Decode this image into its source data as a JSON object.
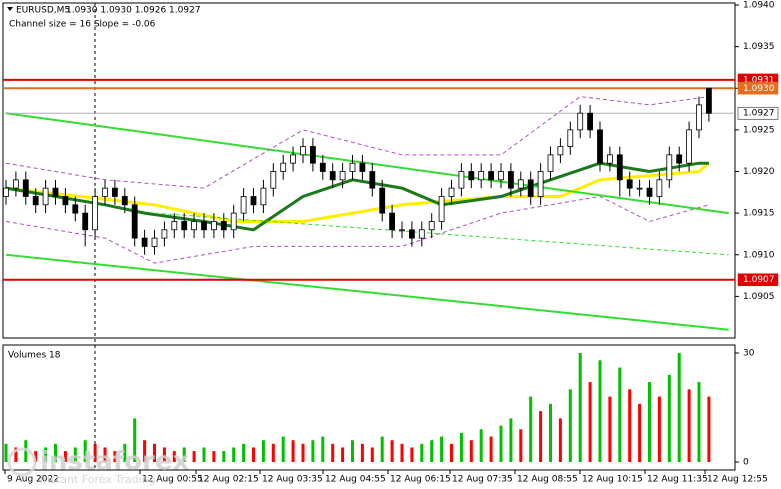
{
  "chart_data": {
    "type": "candlestick",
    "title": "EURUSD,M5",
    "ohlc_label": "1.0930 1.0930 1.0926 1.0927",
    "annotation": "Channel size = 16 Slope = -0.06",
    "open": [
      1.0917,
      1.0918,
      1.0919,
      1.0917,
      1.0916,
      1.0918,
      1.0917,
      1.0916,
      1.0915,
      1.0913,
      1.0917,
      1.0918,
      1.0917,
      1.0916,
      1.0912,
      1.0911,
      1.0912,
      1.0913,
      1.0914,
      1.0913,
      1.0914,
      1.0913,
      1.0914,
      1.0913,
      1.0915,
      1.0917,
      1.0916,
      1.0918,
      1.092,
      1.0921,
      1.0922,
      1.0923,
      1.0921,
      1.092,
      1.0919,
      1.092,
      1.0921,
      1.092,
      1.0918,
      1.0915,
      1.0913,
      1.0913,
      1.0912,
      1.0913,
      1.0914,
      1.0917,
      1.0918,
      1.092,
      1.0919,
      1.092,
      1.0919,
      1.092,
      1.0918,
      1.0919,
      1.0917,
      1.092,
      1.0922,
      1.0923,
      1.0925,
      1.0927,
      1.0925,
      1.0921,
      1.0922,
      1.0919,
      1.0918,
      1.0918,
      1.0917,
      1.0919,
      1.0922,
      1.0921,
      1.0925,
      1.093
    ],
    "high": [
      1.0919,
      1.092,
      1.092,
      1.0918,
      1.0919,
      1.0919,
      1.0918,
      1.0917,
      1.0916,
      1.0918,
      1.0919,
      1.0919,
      1.0918,
      1.0917,
      1.0913,
      1.0913,
      1.0914,
      1.0915,
      1.0915,
      1.0915,
      1.0915,
      1.0915,
      1.0915,
      1.0916,
      1.0918,
      1.0918,
      1.0919,
      1.0921,
      1.0922,
      1.0923,
      1.0924,
      1.0924,
      1.0922,
      1.0921,
      1.0921,
      1.0922,
      1.0922,
      1.0921,
      1.0919,
      1.0916,
      1.0914,
      1.0914,
      1.0914,
      1.0915,
      1.0918,
      1.0919,
      1.0921,
      1.0921,
      1.0921,
      1.0921,
      1.0921,
      1.0921,
      1.092,
      1.092,
      1.0921,
      1.0923,
      1.0924,
      1.0926,
      1.0928,
      1.0928,
      1.0926,
      1.0923,
      1.0923,
      1.092,
      1.0919,
      1.0919,
      1.092,
      1.0923,
      1.0923,
      1.0926,
      1.0929,
      1.093
    ],
    "low": [
      1.0916,
      1.0917,
      1.0916,
      1.0915,
      1.0915,
      1.0916,
      1.0915,
      1.0914,
      1.0911,
      1.0912,
      1.0916,
      1.0916,
      1.0915,
      1.0911,
      1.091,
      1.091,
      1.0911,
      1.0912,
      1.0912,
      1.0912,
      1.0912,
      1.0912,
      1.0912,
      1.0912,
      1.0914,
      1.0915,
      1.0915,
      1.0917,
      1.0919,
      1.092,
      1.0921,
      1.092,
      1.0919,
      1.0918,
      1.0918,
      1.0919,
      1.0919,
      1.0917,
      1.0914,
      1.0912,
      1.0912,
      1.0911,
      1.0911,
      1.0912,
      1.0913,
      1.0916,
      1.0917,
      1.0918,
      1.0918,
      1.0918,
      1.0918,
      1.0917,
      1.0917,
      1.0916,
      1.0916,
      1.0919,
      1.0921,
      1.0922,
      1.0924,
      1.0924,
      1.092,
      1.092,
      1.0917,
      1.0917,
      1.0917,
      1.0916,
      1.0916,
      1.0918,
      1.092,
      1.092,
      1.0924,
      1.0926
    ],
    "close": [
      1.0918,
      1.0919,
      1.0917,
      1.0916,
      1.0918,
      1.0917,
      1.0916,
      1.0915,
      1.0913,
      1.0917,
      1.0918,
      1.0917,
      1.0916,
      1.0912,
      1.0911,
      1.0912,
      1.0913,
      1.0914,
      1.0913,
      1.0914,
      1.0913,
      1.0914,
      1.0913,
      1.0915,
      1.0917,
      1.0916,
      1.0918,
      1.092,
      1.0921,
      1.0922,
      1.0923,
      1.0921,
      1.092,
      1.0919,
      1.092,
      1.0921,
      1.092,
      1.0918,
      1.0915,
      1.0913,
      1.0913,
      1.0912,
      1.0913,
      1.0914,
      1.0917,
      1.0918,
      1.092,
      1.0919,
      1.092,
      1.0919,
      1.092,
      1.0918,
      1.0919,
      1.0917,
      1.092,
      1.0922,
      1.0923,
      1.0925,
      1.0927,
      1.0925,
      1.0921,
      1.0922,
      1.0919,
      1.0918,
      1.0918,
      1.0917,
      1.0919,
      1.0922,
      1.0921,
      1.0925,
      1.0928,
      1.0927
    ],
    "up_color": "#ffffff",
    "down_color": "#000000",
    "ylim": [
      1.09,
      1.094
    ],
    "yticks": [
      1.0905,
      {
        "value": 1.091,
        "label": "1.0910"
      },
      1.0915,
      {
        "value": 1.092,
        "label": "1.0920"
      },
      1.0925,
      {
        "value": 1.093,
        "label": "1.0930"
      },
      1.0935,
      {
        "value": 1.094,
        "label": "1.0940"
      }
    ],
    "levels": [
      {
        "value": 1.0931,
        "color": "#e00000"
      },
      {
        "value": 1.093,
        "label": "1.0930",
        "color": "#e07020"
      },
      {
        "value": 1.0927,
        "color": "#ffffff"
      },
      {
        "value": 1.0907,
        "color": "#e00000"
      }
    ],
    "overlays": [
      {
        "color": "#ffee00",
        "width": 3,
        "x": [
          0,
          15,
          23,
          30,
          40,
          50,
          56,
          60,
          70,
          71
        ],
        "values": [
          1.0918,
          1.0916,
          1.0914,
          1.0914,
          1.0916,
          1.0917,
          1.0917,
          1.0919,
          1.092,
          1.0921
        ]
      },
      {
        "color": "#1a7a1a",
        "width": 3,
        "x": [
          0,
          10,
          14,
          20,
          25,
          30,
          35,
          40,
          44,
          50,
          55,
          60,
          65,
          70,
          71
        ],
        "values": [
          1.0918,
          1.0916,
          1.0915,
          1.0914,
          1.0913,
          1.0917,
          1.0919,
          1.0918,
          1.0916,
          1.0917,
          1.0919,
          1.0921,
          1.092,
          1.0921,
          1.0921
        ]
      },
      {
        "color": "#33dd33",
        "width": 2,
        "x": [
          0,
          73
        ],
        "values": [
          1.0927,
          1.0915
        ]
      },
      {
        "color": "#33dd33",
        "width": 2,
        "x": [
          0,
          73
        ],
        "values": [
          1.091,
          1.0901
        ]
      },
      {
        "color": "#33dd33",
        "width": 1,
        "dash": true,
        "x": [
          15,
          73
        ],
        "values": [
          1.0915,
          1.091
        ]
      },
      {
        "color": "#b050c0",
        "width": 1,
        "dash": true,
        "x": [
          0,
          10,
          20,
          30,
          40,
          50,
          58,
          65,
          71
        ],
        "values": [
          1.0921,
          1.0919,
          1.0918,
          1.0925,
          1.0922,
          1.0922,
          1.0929,
          1.0928,
          1.0929
        ]
      },
      {
        "color": "#b050c0",
        "width": 1,
        "dash": true,
        "x": [
          0,
          10,
          15,
          25,
          40,
          50,
          60,
          65,
          71
        ],
        "values": [
          1.0914,
          1.0912,
          1.0909,
          1.0911,
          1.0911,
          1.0915,
          1.0917,
          1.0914,
          1.0916
        ]
      }
    ],
    "volume": {
      "label": "Volumes 18",
      "values": [
        5,
        4,
        6,
        3,
        4,
        5,
        3,
        4,
        6,
        5,
        4,
        3,
        5,
        12,
        6,
        5,
        4,
        3,
        4,
        3,
        4,
        3,
        3,
        4,
        5,
        4,
        6,
        5,
        7,
        6,
        5,
        6,
        7,
        5,
        4,
        6,
        5,
        4,
        7,
        6,
        5,
        4,
        5,
        6,
        7,
        5,
        8,
        6,
        9,
        7,
        10,
        12,
        9,
        18,
        14,
        16,
        12,
        20,
        30,
        22,
        28,
        18,
        26,
        20,
        16,
        22,
        18,
        24,
        30,
        20,
        22,
        18
      ],
      "up_color": "#00c000",
      "down_color": "#ff0000",
      "ylim": [
        0,
        30
      ],
      "yticks": [
        0,
        30
      ]
    },
    "x_labels": [
      "9 Aug 2022",
      "12 Aug 00:55",
      "12 Aug 02:15",
      "12 Aug 03:35",
      "12 Aug 04:55",
      "12 Aug 06:15",
      "12 Aug 07:35",
      "12 Aug 08:55",
      "12 Aug 10:15",
      "12 Aug 11:35",
      "12 Aug 12:55"
    ],
    "watermark": {
      "brand": "instaforex",
      "tagline": "Instant Forex Trading"
    }
  }
}
